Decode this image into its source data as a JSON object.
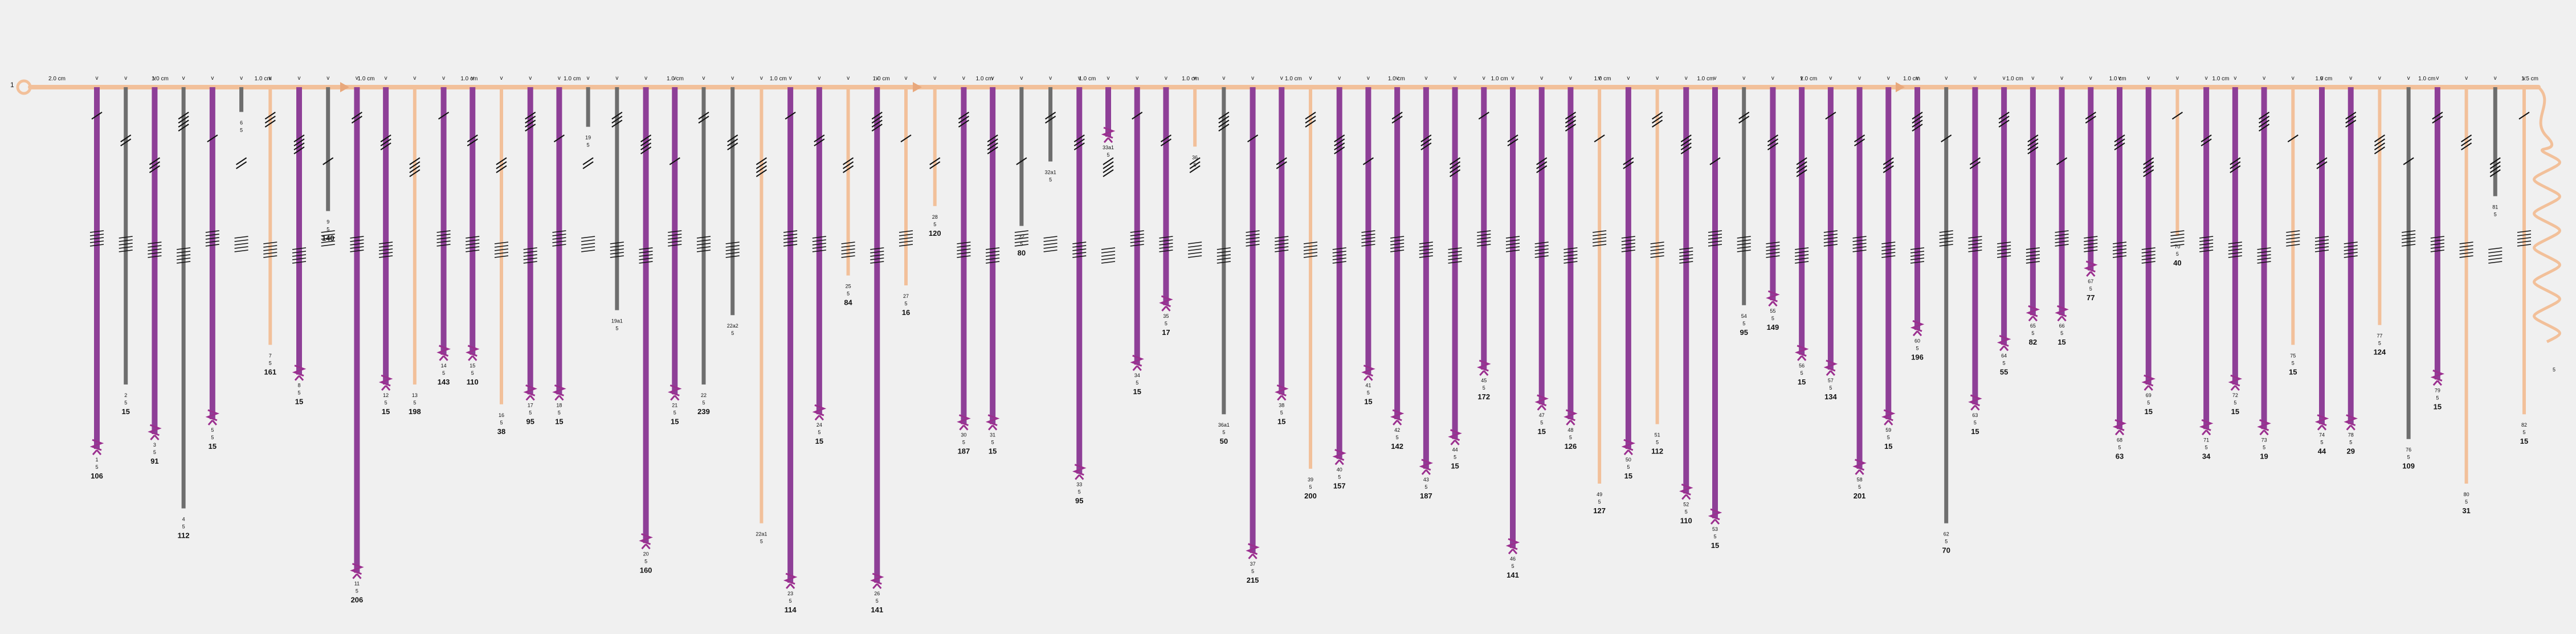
{
  "colors": {
    "background": "#f0f0f0",
    "trunk": "#f2c09a",
    "purple": "#8e3f97",
    "peach": "#f2c09a",
    "gray": "#6e6e6e",
    "clamp": "#9b2f8f",
    "text": "#111111"
  },
  "trunk": {
    "start_label": "1",
    "end_label": "5"
  },
  "distance_labels": [
    "2.0 cm",
    "1.0 cm",
    "1.0 cm",
    "1.0 cm",
    "1.0 cm",
    "1.0 cm",
    "1.0 cm",
    "1.0 cm",
    "1.0 cm",
    "1.0 cm",
    "1.0 cm",
    "1.0 cm",
    "1.0 cm",
    "1.0 cm",
    "1.0 cm",
    "1.0 cm",
    "1.0 cm",
    "1.0 cm",
    "1.0 cm",
    "1.0 cm",
    "1.0 cm",
    "1.0 cm",
    "1.0 cm",
    "1.0 cm",
    "1.5 cm"
  ],
  "connector_symbol": "v",
  "branches": [
    {
      "color": "purple",
      "length": 0.73,
      "node": "1",
      "sub": "5",
      "len": "106"
    },
    {
      "color": "gray",
      "length": 0.6,
      "node": "2",
      "sub": "5",
      "len": "15"
    },
    {
      "color": "purple",
      "length": 0.7,
      "node": "3",
      "sub": "5",
      "len": "91"
    },
    {
      "color": "gray",
      "length": 0.85,
      "node": "4",
      "sub": "5",
      "len": "112"
    },
    {
      "color": "purple",
      "length": 0.67,
      "node": "5",
      "sub": "5",
      "len": "15"
    },
    {
      "color": "gray",
      "length": 0.05,
      "node": "6",
      "sub": "5",
      "len": ""
    },
    {
      "color": "peach",
      "length": 0.52,
      "node": "7",
      "sub": "5",
      "len": "161"
    },
    {
      "color": "purple",
      "length": 0.58,
      "node": "8",
      "sub": "5",
      "len": "15"
    },
    {
      "color": "gray",
      "length": 0.25,
      "node": "9",
      "sub": "5",
      "len": "140"
    },
    {
      "color": "purple",
      "length": 0.98,
      "node": "11",
      "sub": "5",
      "len": "206"
    },
    {
      "color": "purple",
      "length": 0.6,
      "node": "12",
      "sub": "5",
      "len": "15"
    },
    {
      "color": "peach",
      "length": 0.6,
      "node": "13",
      "sub": "5",
      "len": "198"
    },
    {
      "color": "purple",
      "length": 0.54,
      "node": "14",
      "sub": "5",
      "len": "143"
    },
    {
      "color": "purple",
      "length": 0.54,
      "node": "15",
      "sub": "5",
      "len": "110"
    },
    {
      "color": "peach",
      "length": 0.64,
      "node": "16",
      "sub": "5",
      "len": "38"
    },
    {
      "color": "purple",
      "length": 0.62,
      "node": "17",
      "sub": "5",
      "len": "95"
    },
    {
      "color": "purple",
      "length": 0.62,
      "node": "18",
      "sub": "5",
      "len": "15"
    },
    {
      "color": "gray",
      "length": 0.08,
      "node": "19",
      "sub": "5",
      "len": ""
    },
    {
      "color": "gray",
      "length": 0.45,
      "node": "19a1",
      "sub": "5",
      "len": ""
    },
    {
      "color": "purple",
      "length": 0.92,
      "node": "20",
      "sub": "5",
      "len": "160"
    },
    {
      "color": "purple",
      "length": 0.62,
      "node": "21",
      "sub": "5",
      "len": "15"
    },
    {
      "color": "gray",
      "length": 0.6,
      "node": "22",
      "sub": "5",
      "len": "239"
    },
    {
      "color": "gray",
      "length": 0.46,
      "node": "22a2",
      "sub": "5",
      "len": ""
    },
    {
      "color": "peach",
      "length": 0.88,
      "node": "22a1",
      "sub": "5",
      "len": ""
    },
    {
      "color": "purple",
      "length": 1.0,
      "node": "23",
      "sub": "5",
      "len": "114"
    },
    {
      "color": "purple",
      "length": 0.66,
      "node": "24",
      "sub": "5",
      "len": "15"
    },
    {
      "color": "peach",
      "length": 0.38,
      "node": "25",
      "sub": "5",
      "len": "84"
    },
    {
      "color": "purple",
      "length": 1.0,
      "node": "26",
      "sub": "5",
      "len": "141"
    },
    {
      "color": "peach",
      "length": 0.4,
      "node": "27",
      "sub": "5",
      "len": "16"
    },
    {
      "color": "peach",
      "length": 0.24,
      "node": "28",
      "sub": "5",
      "len": "120"
    },
    {
      "color": "purple",
      "length": 0.68,
      "node": "30",
      "sub": "5",
      "len": "187"
    },
    {
      "color": "purple",
      "length": 0.68,
      "node": "31",
      "sub": "5",
      "len": "15"
    },
    {
      "color": "gray",
      "length": 0.28,
      "node": "32",
      "sub": "5",
      "len": "80"
    },
    {
      "color": "gray",
      "length": 0.15,
      "node": "32a1",
      "sub": "5",
      "len": ""
    },
    {
      "color": "purple",
      "length": 0.78,
      "node": "33",
      "sub": "5",
      "len": "95"
    },
    {
      "color": "purple",
      "length": 0.1,
      "node": "33a1",
      "sub": "5",
      "len": ""
    },
    {
      "color": "purple",
      "length": 0.56,
      "node": "34",
      "sub": "5",
      "len": "15"
    },
    {
      "color": "purple",
      "length": 0.44,
      "node": "35",
      "sub": "5",
      "len": "17"
    },
    {
      "color": "peach",
      "length": 0.12,
      "node": "36",
      "sub": "5",
      "len": ""
    },
    {
      "color": "gray",
      "length": 0.66,
      "node": "36a1",
      "sub": "5",
      "len": "50"
    },
    {
      "color": "purple",
      "length": 0.94,
      "node": "37",
      "sub": "5",
      "len": "215"
    },
    {
      "color": "purple",
      "length": 0.62,
      "node": "38",
      "sub": "5",
      "len": "15"
    },
    {
      "color": "peach",
      "length": 0.77,
      "node": "39",
      "sub": "5",
      "len": "200"
    },
    {
      "color": "purple",
      "length": 0.75,
      "node": "40",
      "sub": "5",
      "len": "157"
    },
    {
      "color": "purple",
      "length": 0.58,
      "node": "41",
      "sub": "5",
      "len": "15"
    },
    {
      "color": "purple",
      "length": 0.67,
      "node": "42",
      "sub": "5",
      "len": "142"
    },
    {
      "color": "purple",
      "length": 0.77,
      "node": "43",
      "sub": "5",
      "len": "187"
    },
    {
      "color": "purple",
      "length": 0.71,
      "node": "44",
      "sub": "5",
      "len": "15"
    },
    {
      "color": "purple",
      "length": 0.57,
      "node": "45",
      "sub": "5",
      "len": "172"
    },
    {
      "color": "purple",
      "length": 0.93,
      "node": "46",
      "sub": "5",
      "len": "141"
    },
    {
      "color": "purple",
      "length": 0.64,
      "node": "47",
      "sub": "5",
      "len": "15"
    },
    {
      "color": "purple",
      "length": 0.67,
      "node": "48",
      "sub": "5",
      "len": "126"
    },
    {
      "color": "peach",
      "length": 0.8,
      "node": "49",
      "sub": "5",
      "len": "127"
    },
    {
      "color": "purple",
      "length": 0.73,
      "node": "50",
      "sub": "5",
      "len": "15"
    },
    {
      "color": "peach",
      "length": 0.68,
      "node": "51",
      "sub": "5",
      "len": "112"
    },
    {
      "color": "purple",
      "length": 0.82,
      "node": "52",
      "sub": "5",
      "len": "110"
    },
    {
      "color": "purple",
      "length": 0.87,
      "node": "53",
      "sub": "5",
      "len": "15"
    },
    {
      "color": "gray",
      "length": 0.44,
      "node": "54",
      "sub": "5",
      "len": "95"
    },
    {
      "color": "purple",
      "length": 0.43,
      "node": "55",
      "sub": "5",
      "len": "149"
    },
    {
      "color": "purple",
      "length": 0.54,
      "node": "56",
      "sub": "5",
      "len": "15"
    },
    {
      "color": "purple",
      "length": 0.57,
      "node": "57",
      "sub": "5",
      "len": "134"
    },
    {
      "color": "purple",
      "length": 0.77,
      "node": "58",
      "sub": "5",
      "len": "201"
    },
    {
      "color": "purple",
      "length": 0.67,
      "node": "59",
      "sub": "5",
      "len": "15"
    },
    {
      "color": "purple",
      "length": 0.49,
      "node": "60",
      "sub": "5",
      "len": "196"
    },
    {
      "color": "gray",
      "length": 0.88,
      "node": "62",
      "sub": "5",
      "len": "70"
    },
    {
      "color": "purple",
      "length": 0.64,
      "node": "63",
      "sub": "5",
      "len": "15"
    },
    {
      "color": "purple",
      "length": 0.52,
      "node": "64",
      "sub": "5",
      "len": "55"
    },
    {
      "color": "purple",
      "length": 0.46,
      "node": "65",
      "sub": "5",
      "len": "82"
    },
    {
      "color": "purple",
      "length": 0.46,
      "node": "66",
      "sub": "5",
      "len": "15"
    },
    {
      "color": "purple",
      "length": 0.37,
      "node": "67",
      "sub": "5",
      "len": "77"
    },
    {
      "color": "purple",
      "length": 0.69,
      "node": "68",
      "sub": "5",
      "len": "63"
    },
    {
      "color": "purple",
      "length": 0.6,
      "node": "69",
      "sub": "5",
      "len": "15"
    },
    {
      "color": "peach",
      "length": 0.3,
      "node": "70",
      "sub": "5",
      "len": "40"
    },
    {
      "color": "purple",
      "length": 0.69,
      "node": "71",
      "sub": "5",
      "len": "34"
    },
    {
      "color": "purple",
      "length": 0.6,
      "node": "72",
      "sub": "5",
      "len": "15"
    },
    {
      "color": "purple",
      "length": 0.69,
      "node": "73",
      "sub": "5",
      "len": "19"
    },
    {
      "color": "peach",
      "length": 0.52,
      "node": "75",
      "sub": "5",
      "len": "15"
    },
    {
      "color": "purple",
      "length": 0.68,
      "node": "74",
      "sub": "5",
      "len": "44"
    },
    {
      "color": "purple",
      "length": 0.68,
      "node": "78",
      "sub": "5",
      "len": "29"
    },
    {
      "color": "peach",
      "length": 0.48,
      "node": "77",
      "sub": "5",
      "len": "124"
    },
    {
      "color": "gray",
      "length": 0.71,
      "node": "76",
      "sub": "5",
      "len": "109"
    },
    {
      "color": "purple",
      "length": 0.59,
      "node": "79",
      "sub": "5",
      "len": "15"
    },
    {
      "color": "peach",
      "length": 0.8,
      "node": "80",
      "sub": "5",
      "len": "31"
    },
    {
      "color": "gray",
      "length": 0.22,
      "node": "81",
      "sub": "5",
      "len": ""
    },
    {
      "color": "peach",
      "length": 0.66,
      "node": "82",
      "sub": "5",
      "len": "15"
    }
  ]
}
